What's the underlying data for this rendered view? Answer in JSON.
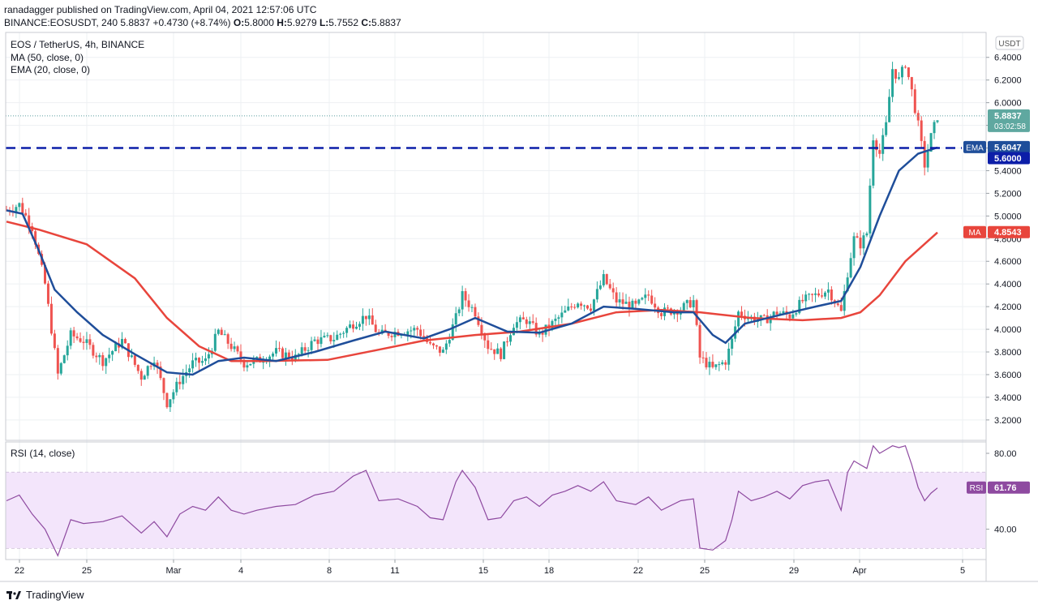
{
  "header": {
    "line1": "ranadagger published on TradingView.com, April 04, 2021 12:57:06 UTC",
    "line2": {
      "symbol": "BINANCE:EOSUSDT, 240",
      "last": "5.8837",
      "change": "+0.4730 (+8.74%)",
      "o_label": "O:",
      "o": "5.8000",
      "h_label": "H:",
      "h": "5.9279",
      "l_label": "L:",
      "l": "5.7552",
      "c_label": "C:",
      "c": "5.8837"
    }
  },
  "legend": {
    "symbol": "EOS / TetherUS, 4h, BINANCE",
    "ma": "MA (50, close, 0)",
    "ema": "EMA (20, close, 0)",
    "rsi": "RSI (14, close)"
  },
  "currency": "USDT",
  "footer": {
    "brand": "TradingView"
  },
  "colors": {
    "up": "#26a69a",
    "down": "#ef5350",
    "ema": "#1f4e9a",
    "ma": "#e8453c",
    "rsi": "#8e4aa0",
    "rsi_band": "#f3e5fb",
    "support": "#0c1ea8",
    "grid": "#eef0f3"
  },
  "chart_data": [
    {
      "type": "candlestick",
      "title": "EOS / TetherUS, 4h, BINANCE",
      "x_ticks": [
        "22",
        "25",
        "Mar",
        "4",
        "8",
        "11",
        "15",
        "18",
        "22",
        "25",
        "29",
        "Apr",
        "5"
      ],
      "y_ticks": [
        "6.4000",
        "6.2000",
        "6.0000",
        "5.8000",
        "5.6000",
        "5.4000",
        "5.2000",
        "5.0000",
        "4.8000",
        "4.6000",
        "4.4000",
        "4.2000",
        "4.0000",
        "3.8000",
        "3.6000",
        "3.4000",
        "3.2000"
      ],
      "ylim": [
        3.02,
        6.62
      ],
      "support_level": 5.6,
      "price_labels": [
        {
          "text": "5.8837",
          "value": 5.8837,
          "sub": "03:02:58",
          "kind": "last"
        },
        {
          "text": "5.6047",
          "value": 5.6047,
          "tag": "EMA",
          "kind": "ema"
        },
        {
          "text": "5.6000",
          "value": 5.6,
          "kind": "support"
        },
        {
          "text": "4.8543",
          "value": 4.8543,
          "tag": "MA",
          "kind": "ma"
        }
      ],
      "key_points": [
        {
          "x": 0,
          "close": 5.05
        },
        {
          "x": 4,
          "close": 5.1
        },
        {
          "x": 8,
          "close": 4.9
        },
        {
          "x": 12,
          "close": 4.4
        },
        {
          "x": 16,
          "close": 3.6
        },
        {
          "x": 20,
          "close": 3.95
        },
        {
          "x": 24,
          "close": 3.9
        },
        {
          "x": 30,
          "close": 3.72
        },
        {
          "x": 36,
          "close": 3.9
        },
        {
          "x": 42,
          "close": 3.58
        },
        {
          "x": 46,
          "close": 3.75
        },
        {
          "x": 50,
          "close": 3.35
        },
        {
          "x": 54,
          "close": 3.55
        },
        {
          "x": 58,
          "close": 3.7
        },
        {
          "x": 62,
          "close": 3.72
        },
        {
          "x": 66,
          "close": 3.98
        },
        {
          "x": 70,
          "close": 3.85
        },
        {
          "x": 74,
          "close": 3.7
        },
        {
          "x": 78,
          "close": 3.72
        },
        {
          "x": 84,
          "close": 3.8
        },
        {
          "x": 90,
          "close": 3.75
        },
        {
          "x": 96,
          "close": 3.9
        },
        {
          "x": 102,
          "close": 3.92
        },
        {
          "x": 108,
          "close": 4.05
        },
        {
          "x": 112,
          "close": 4.12
        },
        {
          "x": 116,
          "close": 3.95
        },
        {
          "x": 122,
          "close": 3.98
        },
        {
          "x": 128,
          "close": 4.0
        },
        {
          "x": 132,
          "close": 3.85
        },
        {
          "x": 136,
          "close": 3.8
        },
        {
          "x": 140,
          "close": 4.1
        },
        {
          "x": 142,
          "close": 4.3
        },
        {
          "x": 146,
          "close": 4.15
        },
        {
          "x": 150,
          "close": 3.85
        },
        {
          "x": 154,
          "close": 3.78
        },
        {
          "x": 158,
          "close": 4.05
        },
        {
          "x": 162,
          "close": 4.08
        },
        {
          "x": 166,
          "close": 3.95
        },
        {
          "x": 170,
          "close": 4.05
        },
        {
          "x": 174,
          "close": 4.15
        },
        {
          "x": 178,
          "close": 4.25
        },
        {
          "x": 182,
          "close": 4.2
        },
        {
          "x": 186,
          "close": 4.45
        },
        {
          "x": 190,
          "close": 4.25
        },
        {
          "x": 196,
          "close": 4.2
        },
        {
          "x": 200,
          "close": 4.3
        },
        {
          "x": 204,
          "close": 4.15
        },
        {
          "x": 210,
          "close": 4.18
        },
        {
          "x": 214,
          "close": 4.25
        },
        {
          "x": 216,
          "close": 3.75
        },
        {
          "x": 220,
          "close": 3.65
        },
        {
          "x": 224,
          "close": 3.72
        },
        {
          "x": 226,
          "close": 3.9
        },
        {
          "x": 228,
          "close": 4.15
        },
        {
          "x": 232,
          "close": 4.1
        },
        {
          "x": 236,
          "close": 4.08
        },
        {
          "x": 240,
          "close": 4.15
        },
        {
          "x": 244,
          "close": 4.12
        },
        {
          "x": 248,
          "close": 4.25
        },
        {
          "x": 252,
          "close": 4.3
        },
        {
          "x": 256,
          "close": 4.35
        },
        {
          "x": 260,
          "close": 4.15
        },
        {
          "x": 262,
          "close": 4.5
        },
        {
          "x": 264,
          "close": 4.8
        },
        {
          "x": 266,
          "close": 4.75
        },
        {
          "x": 268,
          "close": 4.85
        },
        {
          "x": 270,
          "close": 5.7
        },
        {
          "x": 272,
          "close": 5.55
        },
        {
          "x": 274,
          "close": 5.8
        },
        {
          "x": 276,
          "close": 6.3
        },
        {
          "x": 278,
          "close": 6.2
        },
        {
          "x": 280,
          "close": 6.35
        },
        {
          "x": 282,
          "close": 6.1
        },
        {
          "x": 284,
          "close": 5.8
        },
        {
          "x": 286,
          "close": 5.45
        },
        {
          "x": 288,
          "close": 5.7
        },
        {
          "x": 290,
          "close": 5.88
        }
      ],
      "ema20_points": [
        [
          0,
          5.05
        ],
        [
          5,
          5.02
        ],
        [
          10,
          4.7
        ],
        [
          15,
          4.35
        ],
        [
          22,
          4.15
        ],
        [
          30,
          3.95
        ],
        [
          40,
          3.78
        ],
        [
          50,
          3.62
        ],
        [
          58,
          3.6
        ],
        [
          66,
          3.72
        ],
        [
          74,
          3.75
        ],
        [
          84,
          3.72
        ],
        [
          96,
          3.8
        ],
        [
          108,
          3.9
        ],
        [
          118,
          3.98
        ],
        [
          130,
          3.92
        ],
        [
          138,
          4.0
        ],
        [
          146,
          4.1
        ],
        [
          156,
          3.98
        ],
        [
          166,
          3.97
        ],
        [
          176,
          4.05
        ],
        [
          186,
          4.2
        ],
        [
          196,
          4.18
        ],
        [
          208,
          4.15
        ],
        [
          214,
          4.15
        ],
        [
          220,
          3.95
        ],
        [
          224,
          3.88
        ],
        [
          230,
          4.05
        ],
        [
          240,
          4.12
        ],
        [
          252,
          4.2
        ],
        [
          260,
          4.25
        ],
        [
          266,
          4.55
        ],
        [
          272,
          5.0
        ],
        [
          278,
          5.4
        ],
        [
          284,
          5.55
        ],
        [
          290,
          5.6047
        ]
      ],
      "ma50_points": [
        [
          0,
          4.95
        ],
        [
          10,
          4.88
        ],
        [
          25,
          4.75
        ],
        [
          40,
          4.45
        ],
        [
          50,
          4.1
        ],
        [
          60,
          3.85
        ],
        [
          70,
          3.72
        ],
        [
          80,
          3.72
        ],
        [
          100,
          3.73
        ],
        [
          116,
          3.82
        ],
        [
          130,
          3.9
        ],
        [
          146,
          3.95
        ],
        [
          160,
          3.98
        ],
        [
          176,
          4.05
        ],
        [
          190,
          4.15
        ],
        [
          204,
          4.17
        ],
        [
          216,
          4.15
        ],
        [
          232,
          4.1
        ],
        [
          248,
          4.08
        ],
        [
          260,
          4.1
        ],
        [
          266,
          4.15
        ],
        [
          272,
          4.3
        ],
        [
          280,
          4.6
        ],
        [
          290,
          4.8543
        ]
      ]
    },
    {
      "type": "line",
      "title": "RSI (14, close)",
      "series": [
        {
          "name": "RSI",
          "last": 61.76
        }
      ],
      "y_ticks": [
        "80.00",
        "40.00"
      ],
      "ylim": [
        24,
        86
      ],
      "band": [
        30,
        70
      ],
      "points": [
        [
          0,
          55
        ],
        [
          4,
          58
        ],
        [
          8,
          48
        ],
        [
          12,
          40
        ],
        [
          16,
          26
        ],
        [
          20,
          45
        ],
        [
          24,
          43
        ],
        [
          30,
          44
        ],
        [
          36,
          47
        ],
        [
          42,
          38
        ],
        [
          46,
          44
        ],
        [
          50,
          36
        ],
        [
          54,
          48
        ],
        [
          58,
          52
        ],
        [
          62,
          50
        ],
        [
          66,
          57
        ],
        [
          70,
          50
        ],
        [
          74,
          48
        ],
        [
          78,
          50
        ],
        [
          84,
          52
        ],
        [
          90,
          53
        ],
        [
          96,
          58
        ],
        [
          102,
          60
        ],
        [
          108,
          68
        ],
        [
          112,
          71
        ],
        [
          116,
          55
        ],
        [
          122,
          56
        ],
        [
          128,
          52
        ],
        [
          132,
          46
        ],
        [
          136,
          45
        ],
        [
          140,
          65
        ],
        [
          142,
          71
        ],
        [
          146,
          62
        ],
        [
          150,
          45
        ],
        [
          154,
          46
        ],
        [
          158,
          55
        ],
        [
          162,
          57
        ],
        [
          166,
          52
        ],
        [
          170,
          58
        ],
        [
          174,
          60
        ],
        [
          178,
          63
        ],
        [
          182,
          60
        ],
        [
          186,
          65
        ],
        [
          190,
          55
        ],
        [
          196,
          53
        ],
        [
          200,
          57
        ],
        [
          204,
          50
        ],
        [
          210,
          55
        ],
        [
          214,
          56
        ],
        [
          216,
          30
        ],
        [
          220,
          29
        ],
        [
          224,
          34
        ],
        [
          226,
          45
        ],
        [
          228,
          60
        ],
        [
          232,
          55
        ],
        [
          236,
          57
        ],
        [
          240,
          60
        ],
        [
          244,
          56
        ],
        [
          248,
          63
        ],
        [
          252,
          65
        ],
        [
          256,
          66
        ],
        [
          260,
          50
        ],
        [
          262,
          70
        ],
        [
          264,
          76
        ],
        [
          266,
          74
        ],
        [
          268,
          72
        ],
        [
          270,
          84
        ],
        [
          272,
          80
        ],
        [
          274,
          82
        ],
        [
          276,
          84
        ],
        [
          278,
          83
        ],
        [
          280,
          84
        ],
        [
          282,
          74
        ],
        [
          284,
          62
        ],
        [
          286,
          55
        ],
        [
          288,
          59
        ],
        [
          290,
          61.76
        ]
      ]
    }
  ]
}
